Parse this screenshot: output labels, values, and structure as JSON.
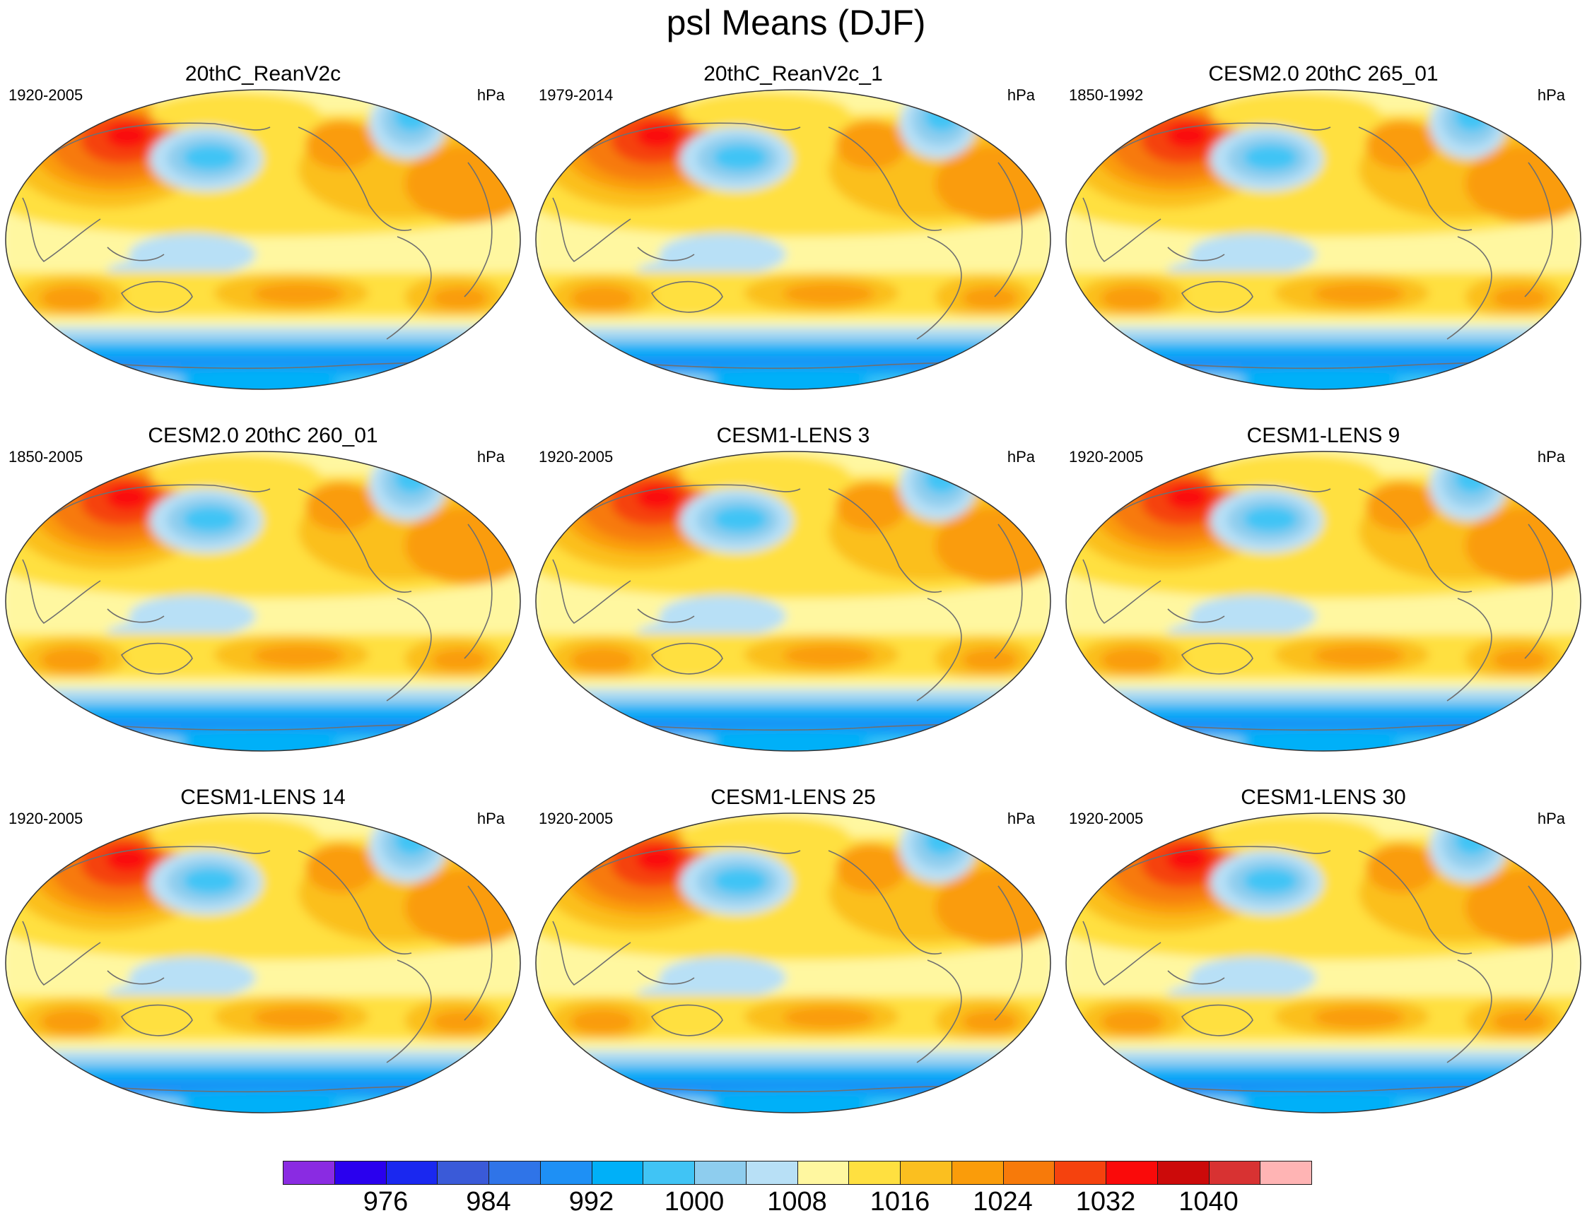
{
  "title": "psl Means (DJF)",
  "panels": [
    {
      "title": "20thC_ReanV2c",
      "years": "1920-2005",
      "units": "hPa"
    },
    {
      "title": "20thC_ReanV2c_1",
      "years": "1979-2014",
      "units": "hPa"
    },
    {
      "title": "CESM2.0 20thC 265_01",
      "years": "1850-1992",
      "units": "hPa"
    },
    {
      "title": "CESM2.0 20thC 260_01",
      "years": "1850-2005",
      "units": "hPa"
    },
    {
      "title": "CESM1-LENS 3",
      "years": "1920-2005",
      "units": "hPa"
    },
    {
      "title": "CESM1-LENS 9",
      "years": "1920-2005",
      "units": "hPa"
    },
    {
      "title": "CESM1-LENS 14",
      "years": "1920-2005",
      "units": "hPa"
    },
    {
      "title": "CESM1-LENS 25",
      "years": "1920-2005",
      "units": "hPa"
    },
    {
      "title": "CESM1-LENS 30",
      "years": "1920-2005",
      "units": "hPa"
    }
  ],
  "colorbar": {
    "colors": [
      "#8a2be2",
      "#2a00ee",
      "#1a28f0",
      "#3a5ad8",
      "#2f74e8",
      "#1e90f5",
      "#00b0f8",
      "#40c4f5",
      "#8ecdee",
      "#b8e0f6",
      "#fff7a0",
      "#ffe040",
      "#fbbf1f",
      "#fa9c0a",
      "#f77a0a",
      "#f5420e",
      "#fa0a0a",
      "#cc0a0a",
      "#d83232",
      "#ffb4b4"
    ],
    "labels": [
      "976",
      "984",
      "992",
      "1000",
      "1008",
      "1016",
      "1024",
      "1032",
      "1040"
    ],
    "label_boundaries": [
      2,
      4,
      6,
      8,
      10,
      12,
      14,
      16,
      18
    ]
  }
}
